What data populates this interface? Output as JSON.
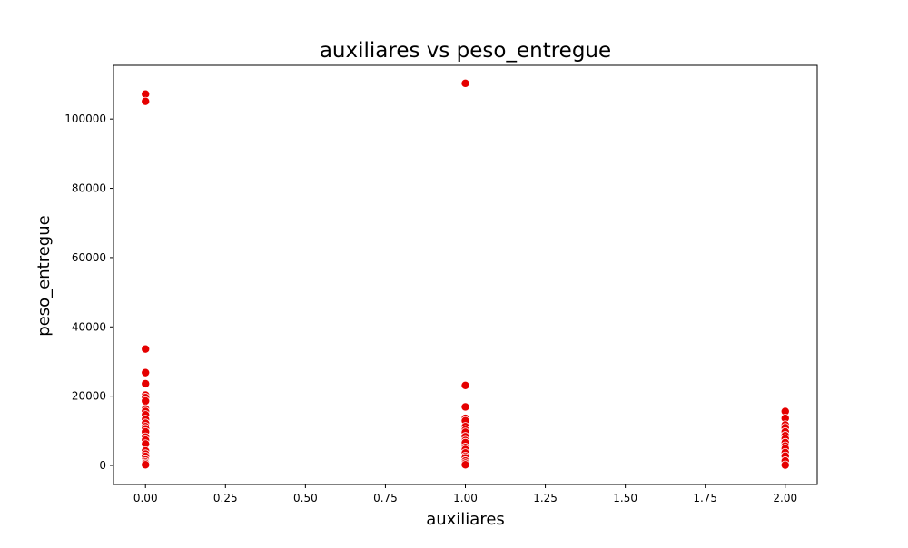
{
  "chart_data": {
    "type": "scatter",
    "title": "auxiliares vs peso_entregue",
    "xlabel": "auxiliares",
    "ylabel": "peso_entregue",
    "xlim": [
      -0.1,
      2.1
    ],
    "ylim": [
      -5500,
      115500
    ],
    "xticks": [
      0.0,
      0.25,
      0.5,
      0.75,
      1.0,
      1.25,
      1.5,
      1.75,
      2.0
    ],
    "xtick_labels": [
      "0.00",
      "0.25",
      "0.50",
      "0.75",
      "1.00",
      "1.25",
      "1.50",
      "1.75",
      "2.00"
    ],
    "yticks": [
      0,
      20000,
      40000,
      60000,
      80000,
      100000
    ],
    "ytick_labels": [
      "0",
      "20000",
      "40000",
      "60000",
      "80000",
      "100000"
    ],
    "grid": false,
    "marker_color": "#e50000",
    "marker_edge_color": "#ffffff",
    "points": [
      {
        "x": 0,
        "y": 107200
      },
      {
        "x": 0,
        "y": 105100
      },
      {
        "x": 0,
        "y": 33600
      },
      {
        "x": 0,
        "y": 26800
      },
      {
        "x": 0,
        "y": 23600
      },
      {
        "x": 0,
        "y": 20300
      },
      {
        "x": 0,
        "y": 19600
      },
      {
        "x": 0,
        "y": 18600
      },
      {
        "x": 0,
        "y": 16300
      },
      {
        "x": 0,
        "y": 15600
      },
      {
        "x": 0,
        "y": 14600
      },
      {
        "x": 0,
        "y": 13300
      },
      {
        "x": 0,
        "y": 12200
      },
      {
        "x": 0,
        "y": 11200
      },
      {
        "x": 0,
        "y": 10600
      },
      {
        "x": 0,
        "y": 9700
      },
      {
        "x": 0,
        "y": 8200
      },
      {
        "x": 0,
        "y": 7300
      },
      {
        "x": 0,
        "y": 6200
      },
      {
        "x": 0,
        "y": 4200
      },
      {
        "x": 0,
        "y": 3300
      },
      {
        "x": 0,
        "y": 2600
      },
      {
        "x": 0,
        "y": 1600
      },
      {
        "x": 0,
        "y": 1000
      },
      {
        "x": 0,
        "y": 600
      },
      {
        "x": 0,
        "y": 200
      },
      {
        "x": 1,
        "y": 110300
      },
      {
        "x": 1,
        "y": 23100
      },
      {
        "x": 1,
        "y": 16900
      },
      {
        "x": 1,
        "y": 13600
      },
      {
        "x": 1,
        "y": 12900
      },
      {
        "x": 1,
        "y": 11200
      },
      {
        "x": 1,
        "y": 10300
      },
      {
        "x": 1,
        "y": 9600
      },
      {
        "x": 1,
        "y": 8300
      },
      {
        "x": 1,
        "y": 7200
      },
      {
        "x": 1,
        "y": 6600
      },
      {
        "x": 1,
        "y": 5200
      },
      {
        "x": 1,
        "y": 4600
      },
      {
        "x": 1,
        "y": 3600
      },
      {
        "x": 1,
        "y": 2600
      },
      {
        "x": 1,
        "y": 2200
      },
      {
        "x": 1,
        "y": 1300
      },
      {
        "x": 1,
        "y": 700
      },
      {
        "x": 1,
        "y": 200
      },
      {
        "x": 2,
        "y": 15600
      },
      {
        "x": 2,
        "y": 13600
      },
      {
        "x": 2,
        "y": 11700
      },
      {
        "x": 2,
        "y": 10900
      },
      {
        "x": 2,
        "y": 9700
      },
      {
        "x": 2,
        "y": 8600
      },
      {
        "x": 2,
        "y": 7700
      },
      {
        "x": 2,
        "y": 6600
      },
      {
        "x": 2,
        "y": 5600
      },
      {
        "x": 2,
        "y": 4900
      },
      {
        "x": 2,
        "y": 3700
      },
      {
        "x": 2,
        "y": 2700
      },
      {
        "x": 2,
        "y": 1300
      },
      {
        "x": 2,
        "y": 100
      }
    ]
  }
}
